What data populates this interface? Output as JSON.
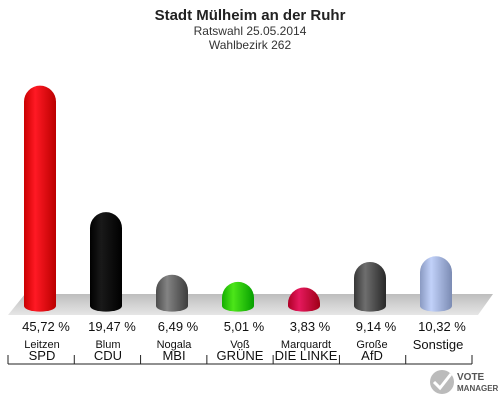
{
  "chart_data": {
    "type": "bar",
    "title": "Stadt Mülheim an der Ruhr",
    "subtitle_lines": [
      "Ratswahl 25.05.2014",
      "Wahlbezirk 262"
    ],
    "categories": [
      "SPD",
      "CDU",
      "MBI",
      "GRÜNE",
      "DIE LINKE",
      "AfD",
      "Sonstige"
    ],
    "candidates": [
      "Leitzen",
      "Blum",
      "Nogala",
      "Voß",
      "Marquardt",
      "Große",
      ""
    ],
    "values": [
      45.72,
      19.47,
      6.49,
      5.01,
      3.83,
      9.14,
      10.32
    ],
    "value_labels": [
      "45,72 %",
      "19,47 %",
      "6,49 %",
      "5,01 %",
      "3,83 %",
      "9,14 %",
      "10,32 %"
    ],
    "colors": [
      "#e8000b",
      "#000000",
      "#6a6a6a",
      "#33cc00",
      "#cc0044",
      "#555555",
      "#a8b8e0"
    ],
    "ylim": [
      0,
      50
    ],
    "grid": false
  },
  "logo": {
    "line1": "VOTE",
    "line2": "MANAGER"
  }
}
